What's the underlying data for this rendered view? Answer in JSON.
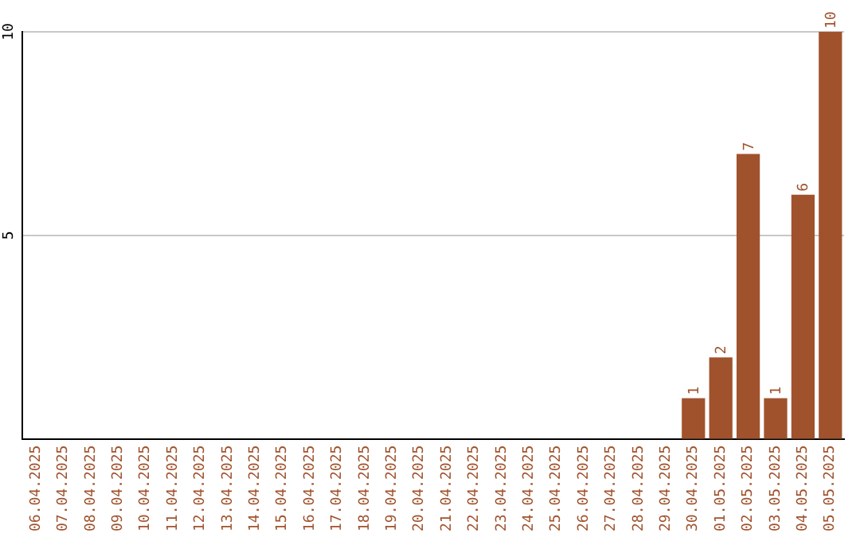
{
  "chart_data": {
    "type": "bar",
    "categories": [
      "06.04.2025",
      "07.04.2025",
      "08.04.2025",
      "09.04.2025",
      "10.04.2025",
      "11.04.2025",
      "12.04.2025",
      "13.04.2025",
      "14.04.2025",
      "15.04.2025",
      "16.04.2025",
      "17.04.2025",
      "18.04.2025",
      "19.04.2025",
      "20.04.2025",
      "21.04.2025",
      "22.04.2025",
      "23.04.2025",
      "24.04.2025",
      "25.04.2025",
      "26.04.2025",
      "27.04.2025",
      "28.04.2025",
      "29.04.2025",
      "30.04.2025",
      "01.05.2025",
      "02.05.2025",
      "03.05.2025",
      "04.05.2025",
      "05.05.2025"
    ],
    "values": [
      0,
      0,
      0,
      0,
      0,
      0,
      0,
      0,
      0,
      0,
      0,
      0,
      0,
      0,
      0,
      0,
      0,
      0,
      0,
      0,
      0,
      0,
      0,
      0,
      1,
      2,
      7,
      1,
      6,
      10
    ],
    "value_labels": [
      null,
      null,
      null,
      null,
      null,
      null,
      null,
      null,
      null,
      null,
      null,
      null,
      null,
      null,
      null,
      null,
      null,
      null,
      null,
      null,
      null,
      null,
      null,
      null,
      "1",
      "2",
      "7",
      "1",
      "6",
      "10"
    ],
    "color": "#a0522d",
    "ylim": [
      0,
      10
    ],
    "yticks": [
      5,
      10
    ],
    "grid": "y"
  }
}
